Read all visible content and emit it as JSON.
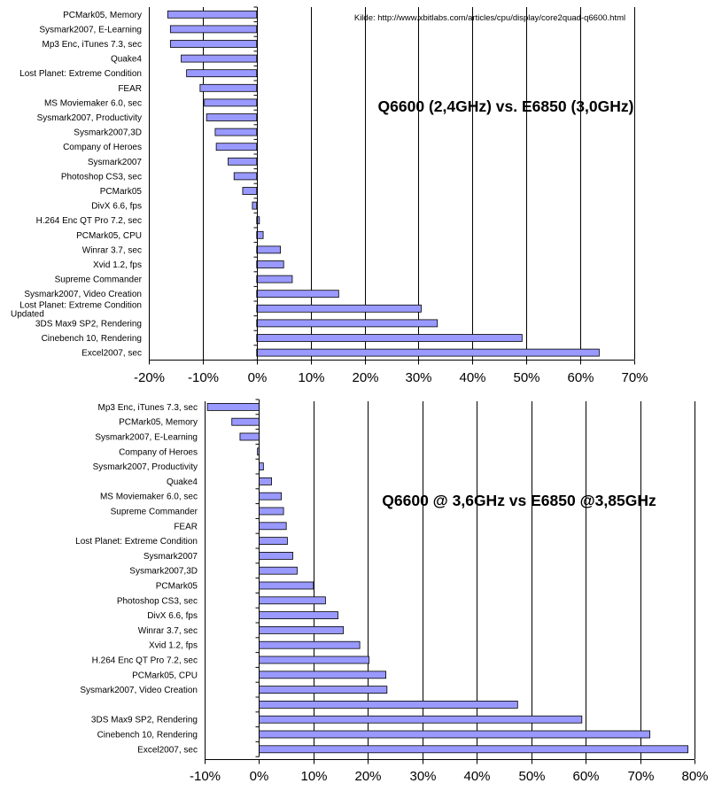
{
  "chart_data": [
    {
      "type": "bar",
      "orientation": "horizontal",
      "title": "Q6600 (2,4GHz) vs. E6850 (3,0GHz)",
      "source": "Kilde: http://www.xbitlabs.com/articles/cpu/display/core2quad-q6600.html",
      "xlim": [
        -20,
        70
      ],
      "xticks": [
        "-20%",
        "-10%",
        "0%",
        "10%",
        "20%",
        "30%",
        "40%",
        "50%",
        "60%",
        "70%"
      ],
      "grid": "vertical",
      "bar_color": "#9999ff",
      "categories": [
        [
          "PCMark05, Memory"
        ],
        [
          "Sysmark2007, E-Learning"
        ],
        [
          "Mp3 Enc, iTunes 7.3, sec"
        ],
        [
          "Quake4"
        ],
        [
          "Lost Planet: Extreme Condition"
        ],
        [
          "FEAR"
        ],
        [
          "MS Moviemaker 6.0, sec"
        ],
        [
          "Sysmark2007, Productivity"
        ],
        [
          "Sysmark2007,3D"
        ],
        [
          "Company of Heroes"
        ],
        [
          "Sysmark2007"
        ],
        [
          "Photoshop CS3, sec"
        ],
        [
          "PCMark05"
        ],
        [
          "DivX 6.6, fps"
        ],
        [
          "H.264 Enc QT Pro 7.2, sec"
        ],
        [
          "PCMark05, CPU"
        ],
        [
          "Winrar 3.7, sec"
        ],
        [
          "Xvid 1.2, fps"
        ],
        [
          "Supreme Commander"
        ],
        [
          "Sysmark2007, Video Creation"
        ],
        [
          "Lost Planet: Extreme Condition",
          "Updated"
        ],
        [
          "3DS Max9 SP2, Rendering"
        ],
        [
          "Cinebench 10, Rendering"
        ],
        [
          "Excel2007, sec"
        ]
      ],
      "values": [
        -16.5,
        -16,
        -16,
        -14,
        -13,
        -10.5,
        -9.7,
        -9.3,
        -7.7,
        -7.5,
        -5.3,
        -4.2,
        -2.6,
        -0.8,
        0.5,
        1.2,
        4.4,
        5.0,
        6.6,
        15.2,
        30.5,
        33.5,
        49.2,
        63.5
      ]
    },
    {
      "type": "bar",
      "orientation": "horizontal",
      "title": "Q6600 @ 3,6GHz vs E6850 @3,85GHz",
      "xlim": [
        -10,
        80
      ],
      "xticks": [
        "-10%",
        "0%",
        "10%",
        "20%",
        "30%",
        "40%",
        "50%",
        "60%",
        "70%",
        "80%"
      ],
      "grid": "vertical",
      "bar_color": "#9999ff",
      "categories": [
        [
          "Mp3 Enc, iTunes 7.3, sec"
        ],
        [
          "PCMark05, Memory"
        ],
        [
          "Sysmark2007, E-Learning"
        ],
        [
          "Company of Heroes"
        ],
        [
          "Sysmark2007, Productivity"
        ],
        [
          "Quake4"
        ],
        [
          "MS Moviemaker 6.0, sec"
        ],
        [
          "Supreme Commander"
        ],
        [
          "FEAR"
        ],
        [
          "Lost Planet: Extreme Condition"
        ],
        [
          "Sysmark2007"
        ],
        [
          "Sysmark2007,3D"
        ],
        [
          "PCMark05"
        ],
        [
          "Photoshop CS3, sec"
        ],
        [
          "DivX 6.6, fps"
        ],
        [
          "Winrar 3.7, sec"
        ],
        [
          "Xvid 1.2, fps"
        ],
        [
          "H.264 Enc QT Pro 7.2, sec"
        ],
        [
          "PCMark05, CPU"
        ],
        [
          "Sysmark2007, Video Creation"
        ],
        [],
        [
          "3DS Max9 SP2, Rendering"
        ],
        [
          "Cinebench 10, Rendering"
        ],
        [
          "Excel2007, sec"
        ]
      ],
      "values": [
        -9.5,
        -5,
        -3.5,
        -0.3,
        0.8,
        2.3,
        4.1,
        4.5,
        5.0,
        5.2,
        6.2,
        7.0,
        10.0,
        12.2,
        14.5,
        15.5,
        18.5,
        20.2,
        23.3,
        23.5,
        47.5,
        59.3,
        71.8,
        78.8
      ]
    }
  ]
}
